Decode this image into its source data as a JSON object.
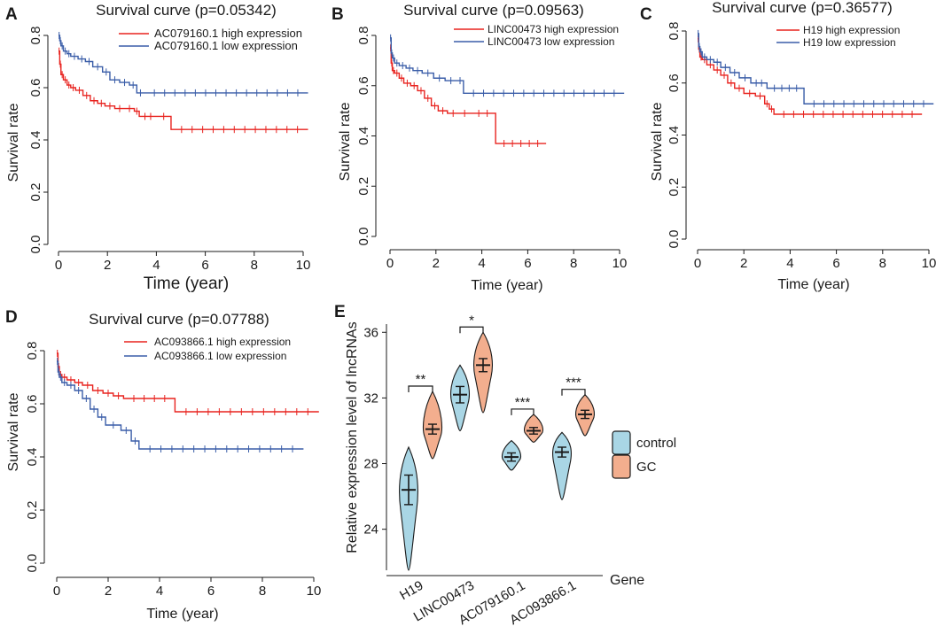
{
  "chart_data": [
    {
      "panel": "A",
      "type": "line",
      "title": "Survival curve (p=0.05342)",
      "xlabel": "Time (year)",
      "ylabel": "Survival rate",
      "xlim": [
        0,
        10
      ],
      "ylim": [
        0,
        0.8
      ],
      "xticks": [
        "0",
        "2",
        "4",
        "6",
        "8",
        "10"
      ],
      "yticks": [
        "0.0",
        "0.2",
        "0.4",
        "0.6",
        "0.8"
      ],
      "legend_position": "top-right",
      "series": [
        {
          "name": "AC079160.1 high expression",
          "color": "#e8231f",
          "x": [
            0,
            0.05,
            0.1,
            0.2,
            0.35,
            0.5,
            0.7,
            1.0,
            1.3,
            1.6,
            1.9,
            2.3,
            2.7,
            3.1,
            3.3,
            4.0,
            4.6,
            10.2
          ],
          "y": [
            0.74,
            0.69,
            0.65,
            0.63,
            0.61,
            0.6,
            0.59,
            0.57,
            0.55,
            0.54,
            0.53,
            0.52,
            0.52,
            0.51,
            0.49,
            0.49,
            0.44,
            0.44
          ]
        },
        {
          "name": "AC079160.1 low expression",
          "color": "#3a5da8",
          "x": [
            0,
            0.05,
            0.1,
            0.2,
            0.35,
            0.5,
            0.8,
            1.1,
            1.4,
            1.8,
            2.1,
            2.5,
            2.9,
            3.2,
            3.5,
            10.2
          ],
          "y": [
            0.8,
            0.78,
            0.76,
            0.74,
            0.73,
            0.72,
            0.71,
            0.7,
            0.68,
            0.66,
            0.63,
            0.62,
            0.61,
            0.58,
            0.58,
            0.58
          ]
        }
      ]
    },
    {
      "panel": "B",
      "type": "line",
      "title": "Survival curve (p=0.09563)",
      "xlabel": "Time (year)",
      "ylabel": "Survival rate",
      "xlim": [
        0,
        10
      ],
      "ylim": [
        0,
        0.8
      ],
      "xticks": [
        "0",
        "2",
        "4",
        "6",
        "8",
        "10"
      ],
      "yticks": [
        "0.0",
        "0.2",
        "0.4",
        "0.6",
        "0.8"
      ],
      "legend_position": "top-right",
      "series": [
        {
          "name": "LINC00473 high expression",
          "color": "#e8231f",
          "x": [
            0,
            0.05,
            0.1,
            0.2,
            0.4,
            0.6,
            0.9,
            1.2,
            1.5,
            1.8,
            2.1,
            2.5,
            3.0,
            3.5,
            4.6,
            6.8
          ],
          "y": [
            0.75,
            0.69,
            0.66,
            0.65,
            0.63,
            0.61,
            0.6,
            0.58,
            0.55,
            0.52,
            0.5,
            0.49,
            0.49,
            0.49,
            0.37,
            0.37
          ]
        },
        {
          "name": "LINC00473 low expression",
          "color": "#3a5da8",
          "x": [
            0,
            0.05,
            0.1,
            0.2,
            0.4,
            0.7,
            1.0,
            1.4,
            1.9,
            2.4,
            2.9,
            3.2,
            10.2
          ],
          "y": [
            0.79,
            0.73,
            0.71,
            0.69,
            0.68,
            0.67,
            0.66,
            0.65,
            0.63,
            0.62,
            0.62,
            0.57,
            0.57
          ]
        }
      ]
    },
    {
      "panel": "C",
      "type": "line",
      "title": "Survival curve (p=0.36577)",
      "xlabel": "Time (year)",
      "ylabel": "Survival rate",
      "xlim": [
        0,
        10
      ],
      "ylim": [
        0,
        0.8
      ],
      "xticks": [
        "0",
        "2",
        "4",
        "6",
        "8",
        "10"
      ],
      "yticks": [
        "0.0",
        "0.2",
        "0.4",
        "0.6",
        "0.8"
      ],
      "legend_position": "top-right",
      "series": [
        {
          "name": "H19 high expression",
          "color": "#e8231f",
          "x": [
            0,
            0.05,
            0.1,
            0.2,
            0.4,
            0.7,
            1.0,
            1.3,
            1.6,
            2.0,
            2.5,
            2.9,
            3.1,
            3.3,
            9.7
          ],
          "y": [
            0.77,
            0.73,
            0.7,
            0.69,
            0.67,
            0.65,
            0.63,
            0.6,
            0.58,
            0.56,
            0.55,
            0.52,
            0.5,
            0.48,
            0.48
          ]
        },
        {
          "name": "H19 low expression",
          "color": "#3a5da8",
          "x": [
            0,
            0.05,
            0.1,
            0.2,
            0.4,
            0.7,
            1.0,
            1.4,
            1.8,
            2.3,
            3.0,
            4.6,
            10.2
          ],
          "y": [
            0.79,
            0.74,
            0.72,
            0.7,
            0.69,
            0.68,
            0.66,
            0.64,
            0.62,
            0.6,
            0.58,
            0.52,
            0.52
          ]
        }
      ]
    },
    {
      "panel": "D",
      "type": "line",
      "title": "Survival curve (p=0.07788)",
      "xlabel": "Time (year)",
      "ylabel": "Survival rate",
      "xlim": [
        0,
        10
      ],
      "ylim": [
        0,
        0.8
      ],
      "xticks": [
        "0",
        "2",
        "4",
        "6",
        "8",
        "10"
      ],
      "yticks": [
        "0.0",
        "0.2",
        "0.4",
        "0.6",
        "0.8"
      ],
      "legend_position": "top-right",
      "series": [
        {
          "name": "AC093866.1 high expression",
          "color": "#e8231f",
          "x": [
            0,
            0.05,
            0.1,
            0.2,
            0.4,
            0.7,
            1.0,
            1.4,
            1.8,
            2.2,
            2.6,
            4.6,
            10.2
          ],
          "y": [
            0.79,
            0.74,
            0.71,
            0.7,
            0.69,
            0.68,
            0.67,
            0.65,
            0.64,
            0.63,
            0.62,
            0.57,
            0.57
          ]
        },
        {
          "name": "AC093866.1 low expression",
          "color": "#3a5da8",
          "x": [
            0,
            0.05,
            0.1,
            0.2,
            0.4,
            0.7,
            1.0,
            1.3,
            1.6,
            1.9,
            2.5,
            2.9,
            3.2,
            9.6
          ],
          "y": [
            0.76,
            0.72,
            0.7,
            0.68,
            0.67,
            0.65,
            0.62,
            0.58,
            0.55,
            0.52,
            0.5,
            0.46,
            0.43,
            0.43
          ]
        }
      ]
    },
    {
      "panel": "E",
      "type": "violin",
      "xlabel": "Gene",
      "ylabel": "Relative expression level of lncRNAs",
      "ylim": [
        21.5,
        36.5
      ],
      "yticks": [
        "24",
        "28",
        "32",
        "36"
      ],
      "categories": [
        "H19",
        "LINC00473",
        "AC079160.1",
        "AC093866.1"
      ],
      "significance": [
        "**",
        "*",
        "***",
        "***"
      ],
      "legend": [
        {
          "label": "control",
          "color": "#a9d6e5"
        },
        {
          "label": "GC",
          "color": "#f3ae8e"
        }
      ],
      "series": [
        {
          "name": "control",
          "mean": [
            26.4,
            32.2,
            28.4,
            28.7
          ],
          "sem": [
            0.9,
            0.5,
            0.25,
            0.3
          ],
          "min": [
            21.5,
            30.0,
            27.6,
            25.8
          ],
          "max": [
            29.0,
            34.0,
            29.4,
            29.9
          ]
        },
        {
          "name": "GC",
          "mean": [
            30.1,
            34.0,
            30.0,
            31.0
          ],
          "sem": [
            0.3,
            0.4,
            0.2,
            0.25
          ],
          "min": [
            28.3,
            31.1,
            29.3,
            29.7
          ],
          "max": [
            32.4,
            36.0,
            31.0,
            32.2
          ]
        }
      ]
    }
  ]
}
